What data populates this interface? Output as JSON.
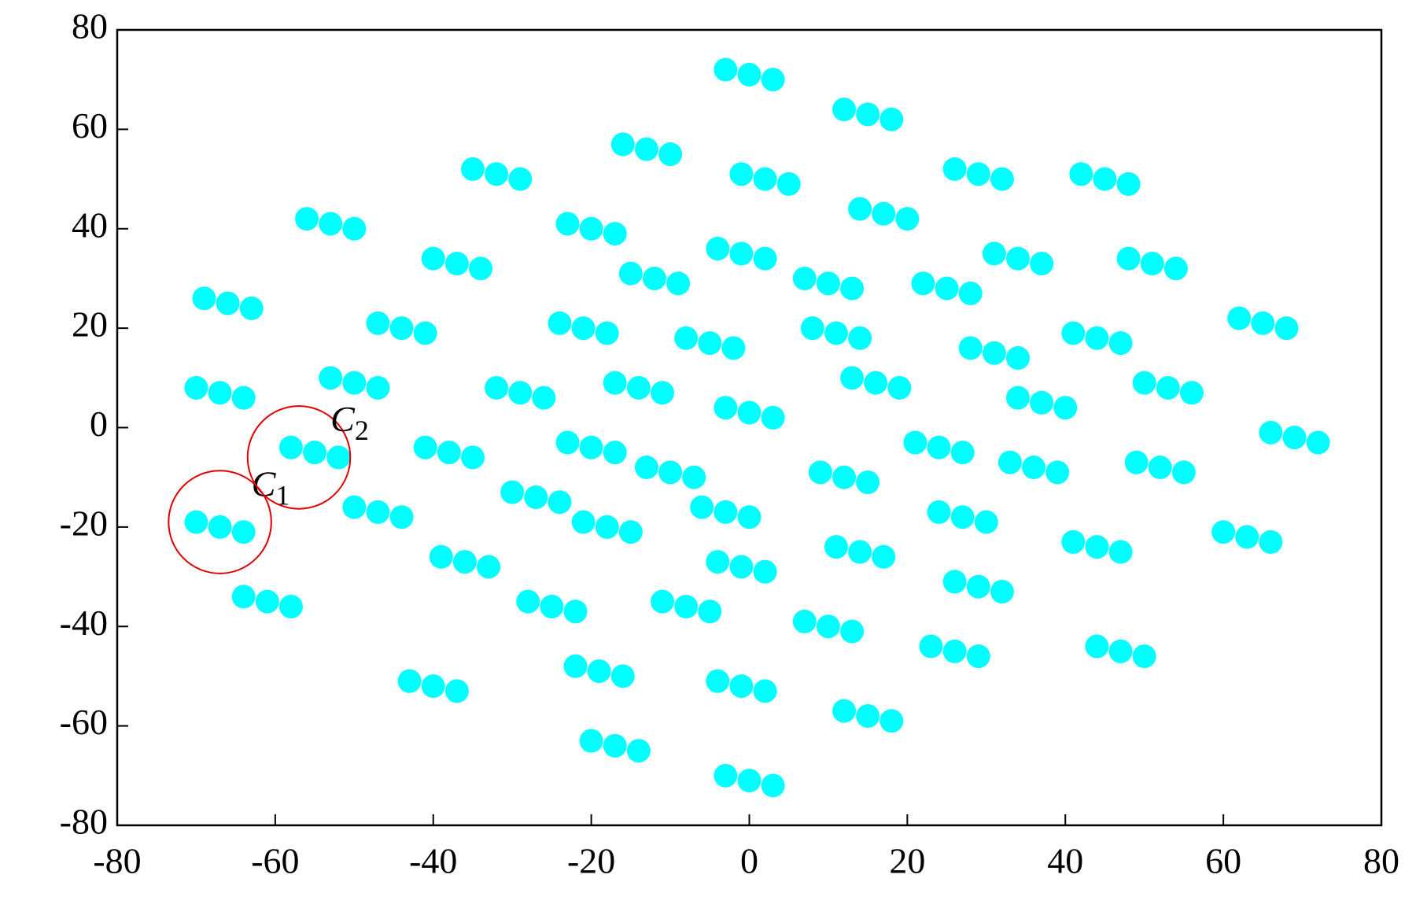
{
  "chart_data": {
    "type": "scatter",
    "color": "#00ffff",
    "xlim": [
      -80,
      80
    ],
    "ylim": [
      -80,
      80
    ],
    "xticks": [
      -80,
      -60,
      -40,
      -20,
      0,
      20,
      40,
      60,
      80
    ],
    "yticks": [
      -80,
      -60,
      -40,
      -20,
      0,
      20,
      40,
      60,
      80
    ],
    "x": [
      -3,
      0,
      3,
      12,
      15,
      18,
      -16,
      -13,
      -10,
      -35,
      -32,
      -29,
      -1,
      2,
      5,
      26,
      29,
      32,
      42,
      45,
      48,
      -56,
      -53,
      -50,
      -23,
      -20,
      -17,
      14,
      17,
      20,
      -40,
      -37,
      -34,
      -4,
      -1,
      2,
      -15,
      -12,
      -9,
      7,
      10,
      13,
      31,
      34,
      37,
      48,
      51,
      54,
      -69,
      -66,
      -63,
      -47,
      -44,
      -41,
      -24,
      -21,
      -18,
      22,
      25,
      28,
      -8,
      -5,
      -2,
      8,
      11,
      14,
      28,
      31,
      34,
      41,
      44,
      47,
      62,
      65,
      68,
      -70,
      -67,
      -64,
      -53,
      -50,
      -47,
      -32,
      -29,
      -26,
      -17,
      -14,
      -11,
      13,
      16,
      19,
      34,
      37,
      40,
      50,
      53,
      56,
      66,
      69,
      72,
      -3,
      0,
      3,
      -58,
      -55,
      -52,
      -41,
      -38,
      -35,
      -23,
      -20,
      -17,
      -13,
      -10,
      -7,
      21,
      24,
      27,
      9,
      12,
      15,
      33,
      36,
      39,
      49,
      52,
      55,
      -70,
      -67,
      -64,
      -50,
      -47,
      -44,
      -30,
      -27,
      -24,
      -6,
      -3,
      0,
      -21,
      -18,
      -15,
      24,
      27,
      30,
      11,
      14,
      17,
      41,
      44,
      47,
      60,
      63,
      66,
      -64,
      -61,
      -58,
      -39,
      -36,
      -33,
      -4,
      -1,
      2,
      -28,
      -25,
      -22,
      -11,
      -8,
      -5,
      26,
      29,
      32,
      7,
      10,
      13,
      23,
      26,
      29,
      44,
      47,
      50,
      -43,
      -40,
      -37,
      -22,
      -19,
      -16,
      -4,
      -1,
      2,
      12,
      15,
      18,
      -20,
      -17,
      -14,
      -3,
      0,
      3
    ],
    "y": [
      72,
      71,
      70,
      64,
      63,
      62,
      57,
      56,
      55,
      52,
      51,
      50,
      51,
      50,
      49,
      52,
      51,
      50,
      51,
      50,
      49,
      42,
      41,
      40,
      41,
      40,
      39,
      44,
      43,
      42,
      34,
      33,
      32,
      36,
      35,
      34,
      31,
      30,
      29,
      30,
      29,
      28,
      35,
      34,
      33,
      34,
      33,
      32,
      26,
      25,
      24,
      21,
      20,
      19,
      21,
      20,
      19,
      29,
      28,
      27,
      18,
      17,
      16,
      20,
      19,
      18,
      16,
      15,
      14,
      19,
      18,
      17,
      22,
      21,
      20,
      8,
      7,
      6,
      10,
      9,
      8,
      8,
      7,
      6,
      9,
      8,
      7,
      10,
      9,
      8,
      6,
      5,
      4,
      9,
      8,
      7,
      -1,
      -2,
      -3,
      4,
      3,
      2,
      -4,
      -5,
      -6,
      -4,
      -5,
      -6,
      -3,
      -4,
      -5,
      -8,
      -9,
      -10,
      -3,
      -4,
      -5,
      -9,
      -10,
      -11,
      -7,
      -8,
      -9,
      -7,
      -8,
      -9,
      -19,
      -20,
      -21,
      -16,
      -17,
      -18,
      -13,
      -14,
      -15,
      -16,
      -17,
      -18,
      -19,
      -20,
      -21,
      -17,
      -18,
      -19,
      -24,
      -25,
      -26,
      -23,
      -24,
      -25,
      -21,
      -22,
      -23,
      -34,
      -35,
      -36,
      -26,
      -27,
      -28,
      -27,
      -28,
      -29,
      -35,
      -36,
      -37,
      -35,
      -36,
      -37,
      -31,
      -32,
      -33,
      -39,
      -40,
      -41,
      -44,
      -45,
      -46,
      -44,
      -45,
      -46,
      -51,
      -52,
      -53,
      -48,
      -49,
      -50,
      -51,
      -52,
      -53,
      -57,
      -58,
      -59,
      -63,
      -64,
      -65,
      -70,
      -71,
      -72
    ],
    "annotations": [
      {
        "text": "C",
        "subscript": "1",
        "x": -67,
        "y": -19,
        "r": 6.5,
        "label_x": -63,
        "label_y": -12,
        "color": "#e00000"
      },
      {
        "text": "C",
        "subscript": "2",
        "x": -57,
        "y": -6,
        "r": 6.5,
        "label_x": -53,
        "label_y": 1,
        "color": "#e00000"
      }
    ]
  }
}
